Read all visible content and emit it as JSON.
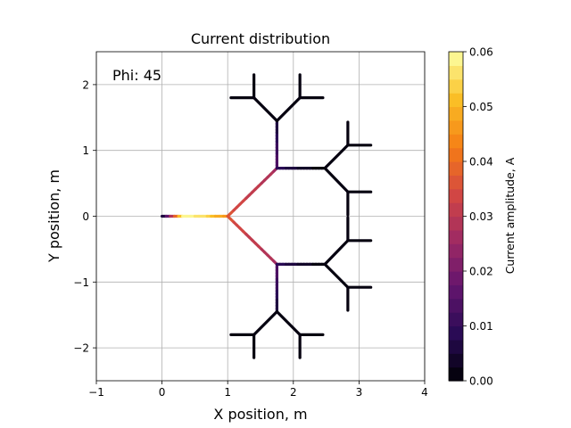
{
  "chart_data": {
    "type": "line",
    "title": "Current distribution",
    "annotation": "Phi: 45",
    "xlabel": "X position, m",
    "ylabel": "Y position, m",
    "xlim": [
      -1,
      4
    ],
    "ylim": [
      -2.5,
      2.5
    ],
    "xticks": [
      -1,
      0,
      1,
      2,
      3,
      4
    ],
    "yticks": [
      -2,
      -1,
      0,
      1,
      2
    ],
    "grid": true,
    "colorbar": {
      "label": "Current amplitude, A",
      "min": 0.0,
      "max": 0.06,
      "ticks": [
        "0.00",
        "0.01",
        "0.02",
        "0.03",
        "0.04",
        "0.05",
        "0.06"
      ],
      "colormap": "inferno",
      "levels": 24
    },
    "segments": [
      {
        "x": [
          0,
          1.0
        ],
        "y": [
          0,
          0
        ],
        "current": [
          0.0,
          0.06,
          0.055,
          0.045
        ]
      },
      {
        "x": [
          1.0,
          1.75
        ],
        "y": [
          0,
          0.73
        ],
        "current": [
          0.036,
          0.027
        ]
      },
      {
        "x": [
          1.0,
          1.75
        ],
        "y": [
          0,
          -0.73
        ],
        "current": [
          0.036,
          0.027
        ]
      },
      {
        "x": [
          1.75,
          1.75
        ],
        "y": [
          0.73,
          1.45
        ],
        "current": [
          0.016,
          0.005
        ]
      },
      {
        "x": [
          1.75,
          1.75
        ],
        "y": [
          -0.73,
          -1.45
        ],
        "current": [
          0.016,
          0.005
        ]
      },
      {
        "x": [
          1.75,
          2.48
        ],
        "y": [
          0.73,
          0.73
        ],
        "current": [
          0.009,
          0.0
        ]
      },
      {
        "x": [
          1.75,
          2.48
        ],
        "y": [
          -0.73,
          -0.73
        ],
        "current": [
          0.009,
          0.0
        ]
      },
      {
        "x": [
          1.75,
          1.4
        ],
        "y": [
          1.45,
          1.8
        ],
        "current": [
          0.0
        ]
      },
      {
        "x": [
          1.75,
          2.1
        ],
        "y": [
          1.45,
          1.8
        ],
        "current": [
          0.0
        ]
      },
      {
        "x": [
          1.4,
          1.4
        ],
        "y": [
          1.8,
          2.15
        ],
        "current": [
          0.0
        ]
      },
      {
        "x": [
          1.4,
          1.05
        ],
        "y": [
          1.8,
          1.8
        ],
        "current": [
          0.0
        ]
      },
      {
        "x": [
          2.1,
          2.1
        ],
        "y": [
          1.8,
          2.15
        ],
        "current": [
          0.0
        ]
      },
      {
        "x": [
          2.1,
          2.45
        ],
        "y": [
          1.8,
          1.8
        ],
        "current": [
          0.0
        ]
      },
      {
        "x": [
          1.75,
          1.4
        ],
        "y": [
          -1.45,
          -1.8
        ],
        "current": [
          0.0
        ]
      },
      {
        "x": [
          1.75,
          2.1
        ],
        "y": [
          -1.45,
          -1.8
        ],
        "current": [
          0.0
        ]
      },
      {
        "x": [
          1.4,
          1.4
        ],
        "y": [
          -1.8,
          -2.15
        ],
        "current": [
          0.0
        ]
      },
      {
        "x": [
          1.4,
          1.05
        ],
        "y": [
          -1.8,
          -1.8
        ],
        "current": [
          0.0
        ]
      },
      {
        "x": [
          2.1,
          2.1
        ],
        "y": [
          -1.8,
          -2.15
        ],
        "current": [
          0.0
        ]
      },
      {
        "x": [
          2.1,
          2.45
        ],
        "y": [
          -1.8,
          -1.8
        ],
        "current": [
          0.0
        ]
      },
      {
        "x": [
          2.48,
          2.83
        ],
        "y": [
          0.73,
          1.08
        ],
        "current": [
          0.0
        ]
      },
      {
        "x": [
          2.48,
          2.83
        ],
        "y": [
          0.73,
          0.37
        ],
        "current": [
          0.0
        ]
      },
      {
        "x": [
          2.83,
          2.83
        ],
        "y": [
          1.08,
          1.43
        ],
        "current": [
          0.0
        ]
      },
      {
        "x": [
          2.83,
          3.18
        ],
        "y": [
          1.08,
          1.08
        ],
        "current": [
          0.0
        ]
      },
      {
        "x": [
          2.83,
          2.83
        ],
        "y": [
          0.37,
          0.02
        ],
        "current": [
          0.0
        ]
      },
      {
        "x": [
          2.83,
          3.18
        ],
        "y": [
          0.37,
          0.37
        ],
        "current": [
          0.0
        ]
      },
      {
        "x": [
          2.48,
          2.83
        ],
        "y": [
          -0.73,
          -1.08
        ],
        "current": [
          0.0
        ]
      },
      {
        "x": [
          2.48,
          2.83
        ],
        "y": [
          -0.73,
          -0.37
        ],
        "current": [
          0.0
        ]
      },
      {
        "x": [
          2.83,
          2.83
        ],
        "y": [
          -1.08,
          -1.43
        ],
        "current": [
          0.0
        ]
      },
      {
        "x": [
          2.83,
          3.18
        ],
        "y": [
          -1.08,
          -1.08
        ],
        "current": [
          0.0
        ]
      },
      {
        "x": [
          2.83,
          2.83
        ],
        "y": [
          -0.37,
          -0.02
        ],
        "current": [
          0.0
        ]
      },
      {
        "x": [
          2.83,
          3.18
        ],
        "y": [
          -0.37,
          -0.37
        ],
        "current": [
          0.0
        ]
      }
    ]
  }
}
